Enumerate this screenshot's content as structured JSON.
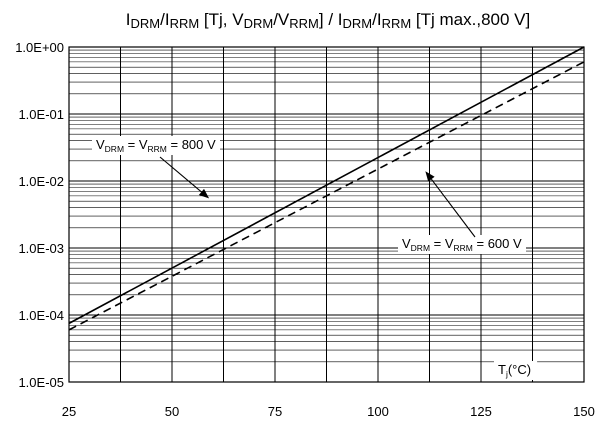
{
  "chart_data": {
    "type": "line",
    "title": {
      "parts": [
        {
          "text": "I",
          "sub": false
        },
        {
          "text": "DRM",
          "sub": true
        },
        {
          "text": "/I",
          "sub": false
        },
        {
          "text": "RRM",
          "sub": true
        },
        {
          "text": " [Tj, V",
          "sub": false
        },
        {
          "text": "DRM",
          "sub": true
        },
        {
          "text": "/V",
          "sub": false
        },
        {
          "text": "RRM",
          "sub": true
        },
        {
          "text": "] / I",
          "sub": false
        },
        {
          "text": "DRM",
          "sub": true
        },
        {
          "text": "/I",
          "sub": false
        },
        {
          "text": "RRM",
          "sub": true
        },
        {
          "text": " [Tj max.,800 V]",
          "sub": false
        }
      ]
    },
    "xlabel": {
      "parts": [
        {
          "text": "T",
          "sub": false
        },
        {
          "text": "j",
          "sub": true
        },
        {
          "text": "(°C)",
          "sub": false
        }
      ]
    },
    "ylabel": "",
    "xlim": [
      25,
      150
    ],
    "ylim": [
      1e-05,
      1
    ],
    "yscale": "log",
    "grid": true,
    "x_ticks": [
      25,
      50,
      75,
      100,
      125,
      150
    ],
    "x_tick_labels": [
      "25",
      "50",
      "75",
      "100",
      "125",
      "150"
    ],
    "y_ticks": [
      1e-05,
      0.0001,
      0.001,
      0.01,
      0.1,
      1
    ],
    "y_tick_labels": [
      "1.0E-05",
      "1.0E-04",
      "1.0E-03",
      "1.0E-02",
      "1.0E-01",
      "1.0E+00"
    ],
    "series": [
      {
        "id": "v800",
        "style": "solid",
        "color": "#000000",
        "x": [
          25,
          150
        ],
        "y": [
          7.5e-05,
          1.0
        ]
      },
      {
        "id": "v600",
        "style": "dashed",
        "color": "#000000",
        "x": [
          25,
          150
        ],
        "y": [
          6e-05,
          0.6
        ]
      }
    ],
    "annotations": [
      {
        "id": "v800-label",
        "series": "v800",
        "parts": [
          {
            "text": "V",
            "sub": false
          },
          {
            "text": "DRM",
            "sub": true
          },
          {
            "text": " = V",
            "sub": false
          },
          {
            "text": "RRM",
            "sub": true
          },
          {
            "text": " = 800 V",
            "sub": false
          }
        ],
        "anchor": "upper-left",
        "arrow_to": {
          "x": 59,
          "y": 0.0055
        }
      },
      {
        "id": "v600-label",
        "series": "v600",
        "parts": [
          {
            "text": "V",
            "sub": false
          },
          {
            "text": "DRM",
            "sub": true
          },
          {
            "text": " = V",
            "sub": false
          },
          {
            "text": "RRM",
            "sub": true
          },
          {
            "text": " = 600 V",
            "sub": false
          }
        ],
        "anchor": "lower-right",
        "arrow_to": {
          "x": 111.5,
          "y": 0.014
        }
      }
    ]
  }
}
